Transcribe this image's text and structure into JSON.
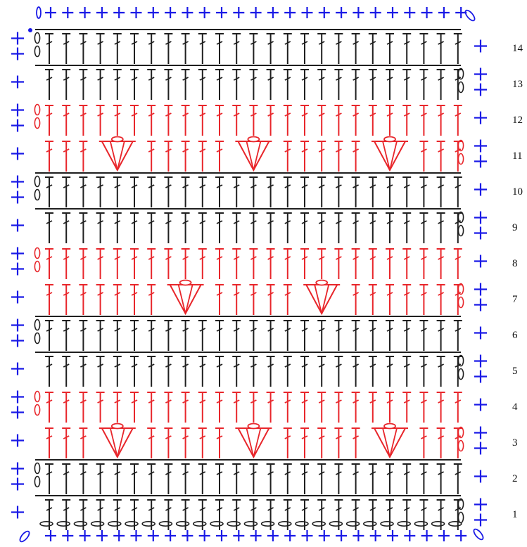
{
  "colors": {
    "background": "#ffffff",
    "border_stitch": "#1a1ae6",
    "dark_stitch": "#1f1f1f",
    "accent_stitch": "#e8262b"
  },
  "legend_symbols": {
    "single_crochet": "plus-icon",
    "chain": "oval-icon",
    "double_crochet": "t-crossbar-icon",
    "half_double_crochet": "t-icon",
    "shell_cluster": "v-shell-icon",
    "slip_stitch": "dot-icon"
  },
  "rows": [
    {
      "label": "1",
      "color": "dark",
      "stitch": "double_crochet",
      "turn_side": "right"
    },
    {
      "label": "2",
      "color": "dark",
      "stitch": "double_crochet",
      "turn_side": "left"
    },
    {
      "label": "3",
      "color": "red",
      "stitch": "half_double_crochet",
      "turn_side": "right",
      "shells": 3,
      "shell_offset": 0
    },
    {
      "label": "4",
      "color": "red",
      "stitch": "half_double_crochet",
      "turn_side": "left"
    },
    {
      "label": "5",
      "color": "dark",
      "stitch": "double_crochet",
      "turn_side": "right"
    },
    {
      "label": "6",
      "color": "dark",
      "stitch": "double_crochet",
      "turn_side": "left"
    },
    {
      "label": "7",
      "color": "red",
      "stitch": "half_double_crochet",
      "turn_side": "right",
      "shells": 2,
      "shell_offset": 1
    },
    {
      "label": "8",
      "color": "red",
      "stitch": "half_double_crochet",
      "turn_side": "left"
    },
    {
      "label": "9",
      "color": "dark",
      "stitch": "double_crochet",
      "turn_side": "right"
    },
    {
      "label": "10",
      "color": "dark",
      "stitch": "double_crochet",
      "turn_side": "left"
    },
    {
      "label": "11",
      "color": "red",
      "stitch": "half_double_crochet",
      "turn_side": "right",
      "shells": 3,
      "shell_offset": 0
    },
    {
      "label": "12",
      "color": "red",
      "stitch": "half_double_crochet",
      "turn_side": "left"
    },
    {
      "label": "13",
      "color": "dark",
      "stitch": "double_crochet",
      "turn_side": "right"
    },
    {
      "label": "14",
      "color": "dark",
      "stitch": "double_crochet",
      "turn_side": "left"
    }
  ],
  "stitches_per_row": 25,
  "foundation_chain_count": 25,
  "border": {
    "stitch": "single_crochet",
    "top_count": 25,
    "bottom_count": 25
  }
}
